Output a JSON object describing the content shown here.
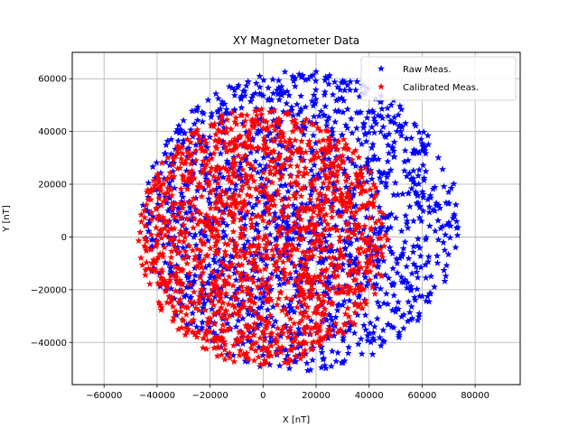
{
  "chart_data": {
    "type": "scatter",
    "title": "XY Magnetometer Data",
    "xlabel": "X [nT]",
    "ylabel": "Y [nT]",
    "xlim": [
      -72000,
      97000
    ],
    "ylim": [
      -56000,
      70000
    ],
    "xticks": [
      -60000,
      -40000,
      -20000,
      0,
      20000,
      40000,
      60000,
      80000
    ],
    "yticks": [
      -40000,
      -20000,
      0,
      20000,
      40000,
      60000
    ],
    "grid": true,
    "legend_location": "top-right",
    "marker": "star",
    "series": [
      {
        "name": "Raw Meas.",
        "color": "#0000ff",
        "center": [
          14000,
          6000
        ],
        "radius": [
          60000,
          57000
        ],
        "count": 1500
      },
      {
        "name": "Calibrated Meas.",
        "color": "#ff0000",
        "center": [
          0,
          0
        ],
        "radius": [
          47000,
          49000
        ],
        "count": 1500
      }
    ]
  }
}
